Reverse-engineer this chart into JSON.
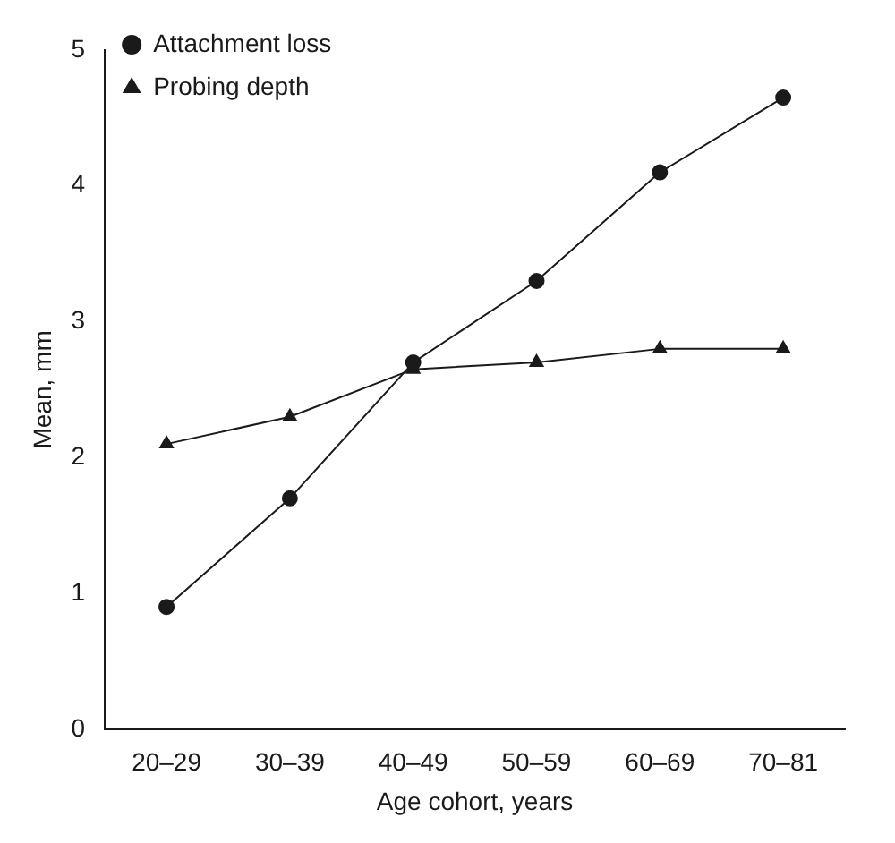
{
  "chart_data": {
    "type": "line",
    "xlabel": "Age cohort, years",
    "ylabel": "Mean, mm",
    "categories": [
      "20–29",
      "30–39",
      "40–49",
      "50–59",
      "60–69",
      "70–81"
    ],
    "series": [
      {
        "name": "Attachment loss",
        "color": "#1a1a1a",
        "marker": "circle",
        "values": [
          0.9,
          1.7,
          2.7,
          3.3,
          4.1,
          4.65
        ]
      },
      {
        "name": "Probing depth",
        "color": "#1a1a1a",
        "marker": "triangle",
        "values": [
          2.1,
          2.3,
          2.65,
          2.7,
          2.8,
          2.8
        ]
      }
    ],
    "ylim": [
      0,
      5
    ],
    "yticks": [
      0,
      1,
      2,
      3,
      4,
      5
    ],
    "grid": false,
    "legend": "top left",
    "line_style": "solid"
  }
}
